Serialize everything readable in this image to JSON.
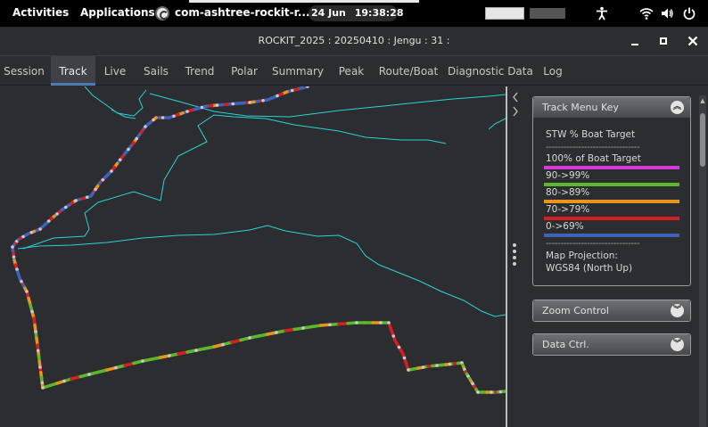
{
  "topbar": {
    "activities": "Activities",
    "applications": "Applications",
    "app_name": "com-ashtree-rockit-r...",
    "date": "24 Jun",
    "time": "19:38:28"
  },
  "window": {
    "title": "ROCKIT_2025 : 20250410 : Jengu : 31 :"
  },
  "tabs": [
    {
      "label": "Session"
    },
    {
      "label": "Track"
    },
    {
      "label": "Live"
    },
    {
      "label": "Sails"
    },
    {
      "label": "Trend"
    },
    {
      "label": "Polar"
    },
    {
      "label": "Summary"
    },
    {
      "label": "Peak"
    },
    {
      "label": "Route/Boat"
    },
    {
      "label": "Diagnostic Data"
    },
    {
      "label": "Log"
    }
  ],
  "active_tab": "Track",
  "track_key": {
    "title": "Track Menu Key",
    "heading": "STW % Boat Target",
    "dashes": "--------------------------------",
    "items": [
      {
        "label": "100% of Boat Target",
        "color": "#d63ad6"
      },
      {
        "label": "90->99%",
        "color": "#5cb82a"
      },
      {
        "label": "80->89%",
        "color": "#e8951c"
      },
      {
        "label": "70->79%",
        "color": "#d42020"
      },
      {
        "label": "0->69%",
        "color": "#3f63b8"
      }
    ],
    "projection_label": "Map Projection:",
    "projection_value": "WGS84 (North Up)"
  },
  "zoom_control": {
    "title": "Zoom Control"
  },
  "data_ctrl": {
    "title": "Data Ctrl."
  },
  "colors": {
    "coastline": "#2ad4d4",
    "track_green": "#5cb82a",
    "track_orange": "#e8951c",
    "track_red": "#d42020",
    "track_blue": "#3f63b8",
    "track_point": "#c8c8d8"
  }
}
